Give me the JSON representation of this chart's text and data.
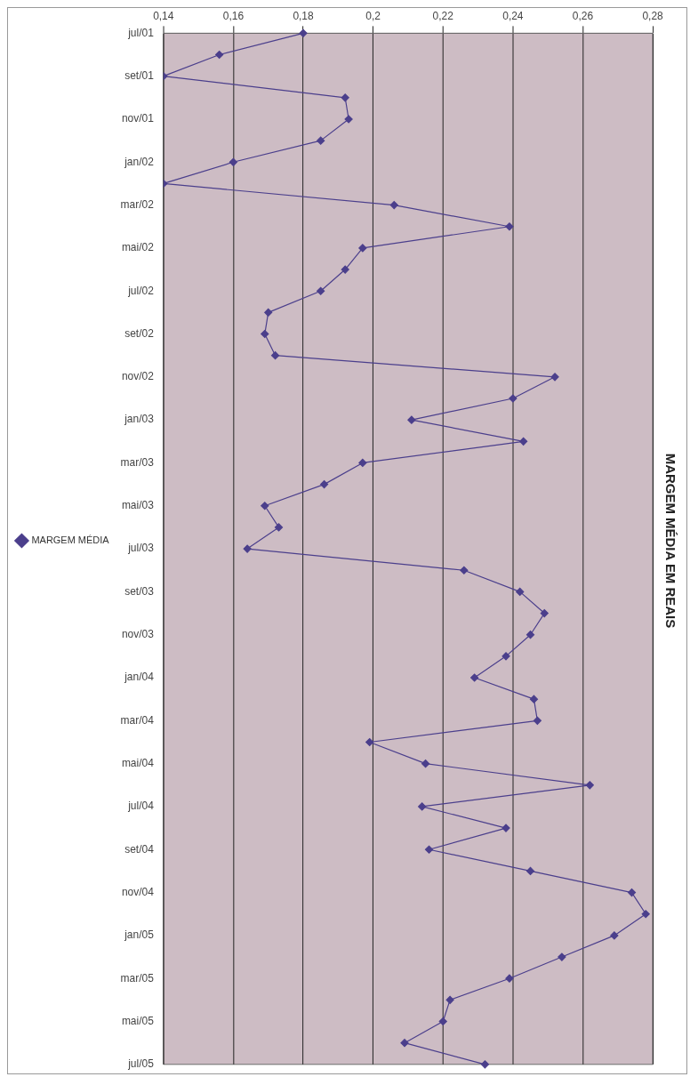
{
  "chart_data": {
    "type": "line",
    "orientation": "horizontal",
    "title": "MARGEM MÉDIA EM REAIS",
    "categories": [
      "jul/01",
      null,
      "set/01",
      null,
      "nov/01",
      null,
      "jan/02",
      null,
      "mar/02",
      null,
      "mai/02",
      null,
      "jul/02",
      null,
      "set/02",
      null,
      "nov/02",
      null,
      "jan/03",
      null,
      "mar/03",
      null,
      "mai/03",
      null,
      "jul/03",
      null,
      "set/03",
      null,
      "nov/03",
      null,
      "jan/04",
      null,
      "mar/04",
      null,
      "mai/04",
      null,
      "jul/04",
      null,
      "set/04",
      null,
      "nov/04",
      null,
      "jan/05",
      null,
      "mar/05",
      null,
      "mai/05",
      null,
      "jul/05"
    ],
    "series": [
      {
        "name": "MARGEM MÉDIA",
        "color": "#4b3f8c",
        "values": [
          0.18,
          0.156,
          0.14,
          0.192,
          0.193,
          0.185,
          0.16,
          0.14,
          0.206,
          0.239,
          0.197,
          0.192,
          0.185,
          0.17,
          0.169,
          0.172,
          0.252,
          0.24,
          0.211,
          0.243,
          0.197,
          0.186,
          0.169,
          0.173,
          0.164,
          0.226,
          0.242,
          0.249,
          0.245,
          0.238,
          0.229,
          0.246,
          0.247,
          0.199,
          0.215,
          0.262,
          0.214,
          0.238,
          0.216,
          0.245,
          0.274,
          0.278,
          0.269,
          0.254,
          0.239,
          0.222,
          0.22,
          0.209,
          0.232
        ]
      }
    ],
    "xlim": [
      0.14,
      0.28
    ],
    "xticks": [
      {
        "value": 0.14,
        "label": "0,14"
      },
      {
        "value": 0.16,
        "label": "0,16"
      },
      {
        "value": 0.18,
        "label": "0,18"
      },
      {
        "value": 0.2,
        "label": "0,2"
      },
      {
        "value": 0.22,
        "label": "0,22"
      },
      {
        "value": 0.24,
        "label": "0,24"
      },
      {
        "value": 0.26,
        "label": "0,26"
      },
      {
        "value": 0.28,
        "label": "0,28"
      }
    ],
    "grid": "x",
    "legend": "left",
    "marker": "diamond",
    "line_style": "solid"
  }
}
